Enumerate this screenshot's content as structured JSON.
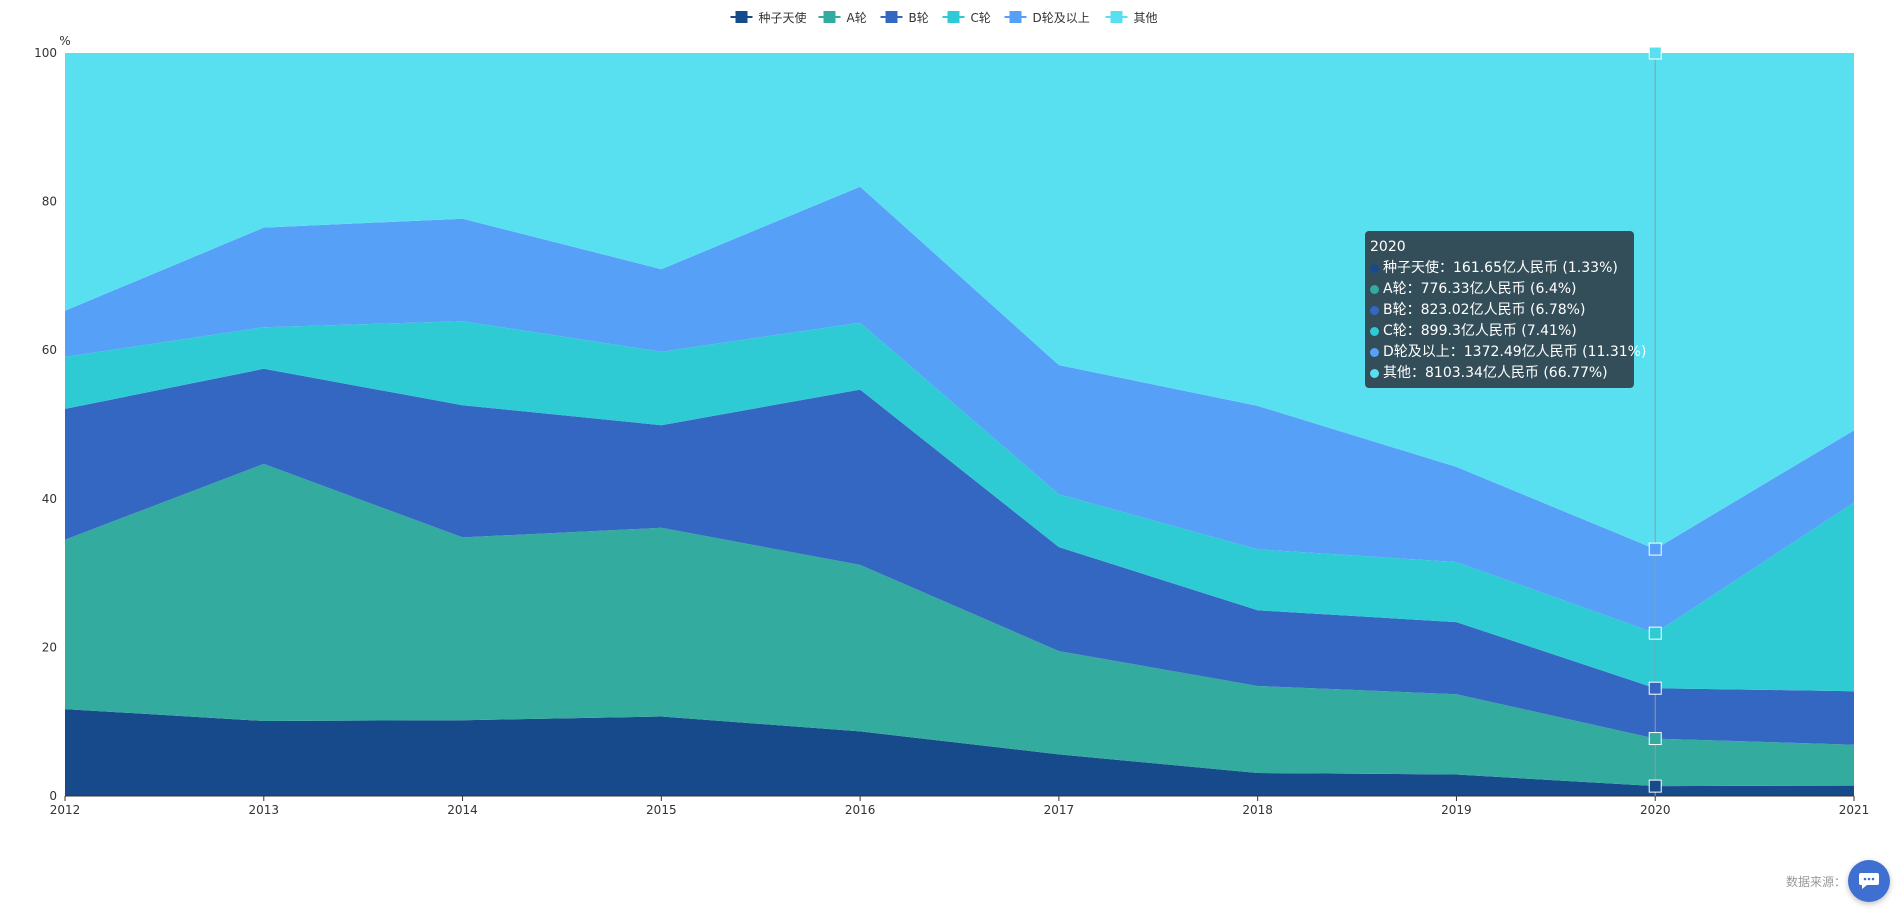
{
  "chart_data": {
    "type": "area",
    "stacked_percent": true,
    "x": [
      "2012",
      "2013",
      "2014",
      "2015",
      "2016",
      "2017",
      "2018",
      "2019",
      "2020",
      "2021"
    ],
    "y_unit": "%",
    "ylim": [
      0,
      100
    ],
    "yticks": [
      0,
      20,
      40,
      60,
      80,
      100
    ],
    "legend_position": "top-center",
    "grid": false,
    "series": [
      {
        "name": "种子天使",
        "color": "#174a8b",
        "values": [
          11.7,
          10.1,
          10.2,
          10.7,
          8.7,
          5.6,
          3.1,
          2.9,
          1.33,
          1.4
        ]
      },
      {
        "name": "A轮",
        "color": "#33ab9f",
        "values": [
          22.8,
          34.6,
          24.6,
          25.4,
          22.4,
          13.9,
          11.7,
          10.8,
          6.4,
          5.5
        ]
      },
      {
        "name": "B轮",
        "color": "#3467c2",
        "values": [
          17.6,
          12.8,
          17.8,
          13.8,
          23.6,
          14.0,
          10.2,
          9.7,
          6.78,
          7.2
        ]
      },
      {
        "name": "C轮",
        "color": "#2ecbd4",
        "values": [
          7.0,
          5.6,
          11.3,
          9.9,
          9.0,
          7.1,
          8.2,
          8.1,
          7.41,
          25.4
        ]
      },
      {
        "name": "D轮及以上",
        "color": "#56a0f7",
        "values": [
          6.2,
          13.4,
          13.8,
          11.1,
          18.3,
          17.4,
          19.3,
          12.8,
          11.31,
          9.7
        ]
      },
      {
        "name": "其他",
        "color": "#59e0f0",
        "values": [
          34.7,
          23.5,
          22.3,
          29.1,
          18.0,
          42.0,
          47.5,
          55.7,
          66.77,
          50.8
        ]
      }
    ],
    "highlight": {
      "x": "2020",
      "tooltip_title": "2020",
      "tooltip_rows": [
        "种子天使：161.65亿人民币 (1.33%)",
        "A轮：776.33亿人民币 (6.4%)",
        "B轮：823.02亿人民币 (6.78%)",
        "C轮：899.3亿人民币 (7.41%)",
        "D轮及以上：1372.49亿人民币 (11.31%)",
        "其他：8103.34亿人民币 (66.77%)"
      ]
    }
  },
  "footer": {
    "source_label": "数据来源："
  },
  "icons": {
    "chat_button": "chat-bubble-icon"
  }
}
